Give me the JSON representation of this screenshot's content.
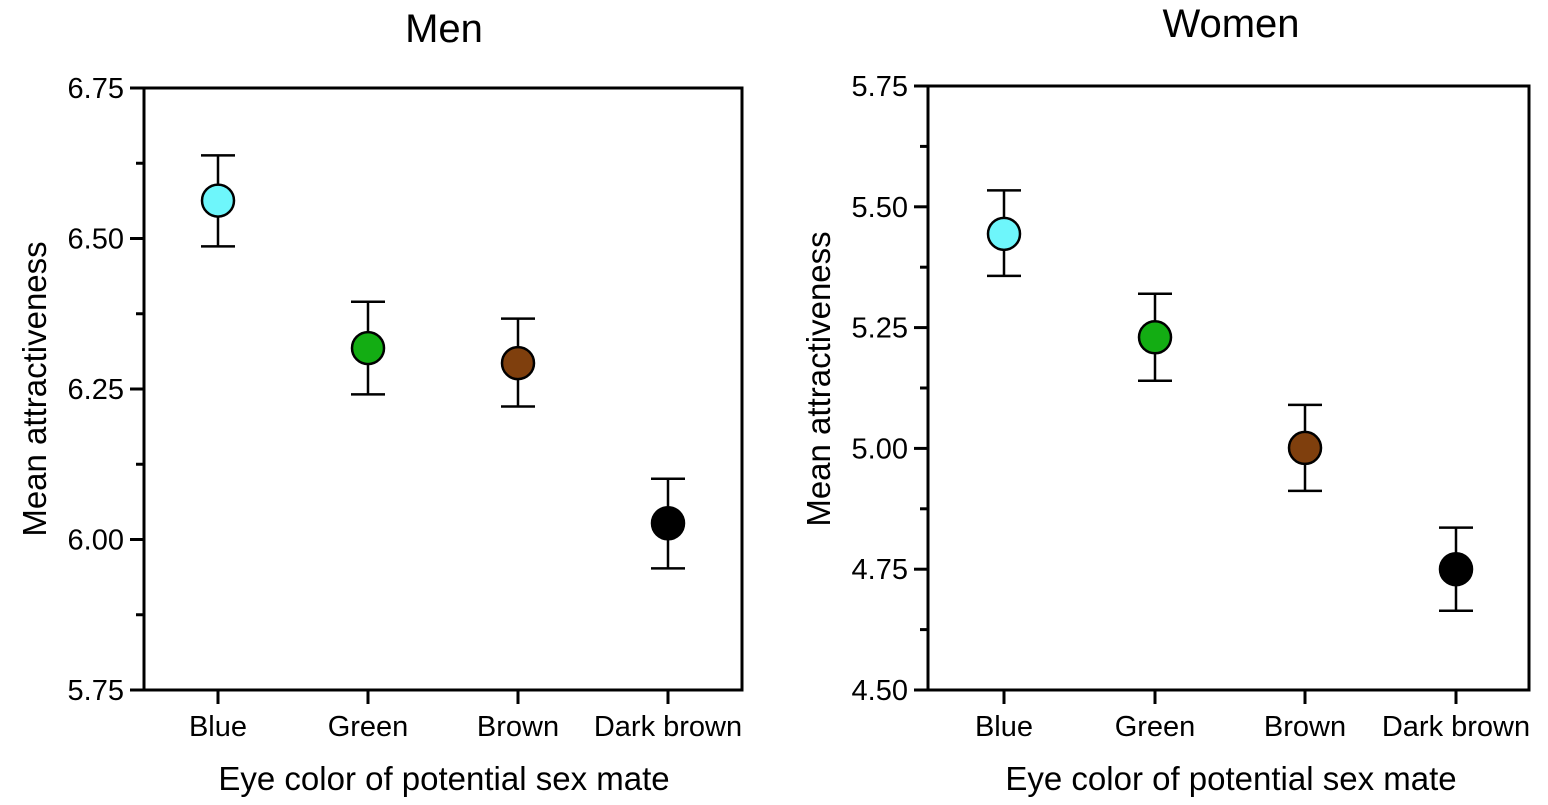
{
  "chart_data": [
    {
      "type": "scatter",
      "title": "Men",
      "xlabel": "Eye color of potential sex mate",
      "ylabel": "Mean attractiveness",
      "categories": [
        "Blue",
        "Green",
        "Brown",
        "Dark brown"
      ],
      "values": [
        6.563,
        6.318,
        6.293,
        6.027
      ],
      "error_low": [
        6.487,
        6.241,
        6.221,
        5.952
      ],
      "error_high": [
        6.638,
        6.395,
        6.367,
        6.101
      ],
      "point_colors": [
        "#6ef6fb",
        "#13ad13",
        "#7f3f0d",
        "#000000"
      ],
      "ylim": [
        5.75,
        6.75
      ],
      "ytick_labels": [
        "5.75",
        "6.00",
        "6.25",
        "6.50",
        "6.75"
      ],
      "grid": false,
      "legend": "none"
    },
    {
      "type": "scatter",
      "title": "Women",
      "xlabel": "Eye color of potential sex mate",
      "ylabel": "Mean attractiveness",
      "categories": [
        "Blue",
        "Green",
        "Brown",
        "Dark brown"
      ],
      "values": [
        5.444,
        5.23,
        5.001,
        4.75
      ],
      "error_low": [
        5.357,
        5.14,
        4.912,
        4.664
      ],
      "error_high": [
        5.534,
        5.32,
        5.09,
        4.836
      ],
      "point_colors": [
        "#6ef6fb",
        "#13ad13",
        "#7f3f0d",
        "#000000"
      ],
      "ylim": [
        4.5,
        5.75
      ],
      "ytick_labels": [
        "4.50",
        "4.75",
        "5.00",
        "5.25",
        "5.50",
        "5.75"
      ],
      "grid": false,
      "legend": "none"
    }
  ]
}
